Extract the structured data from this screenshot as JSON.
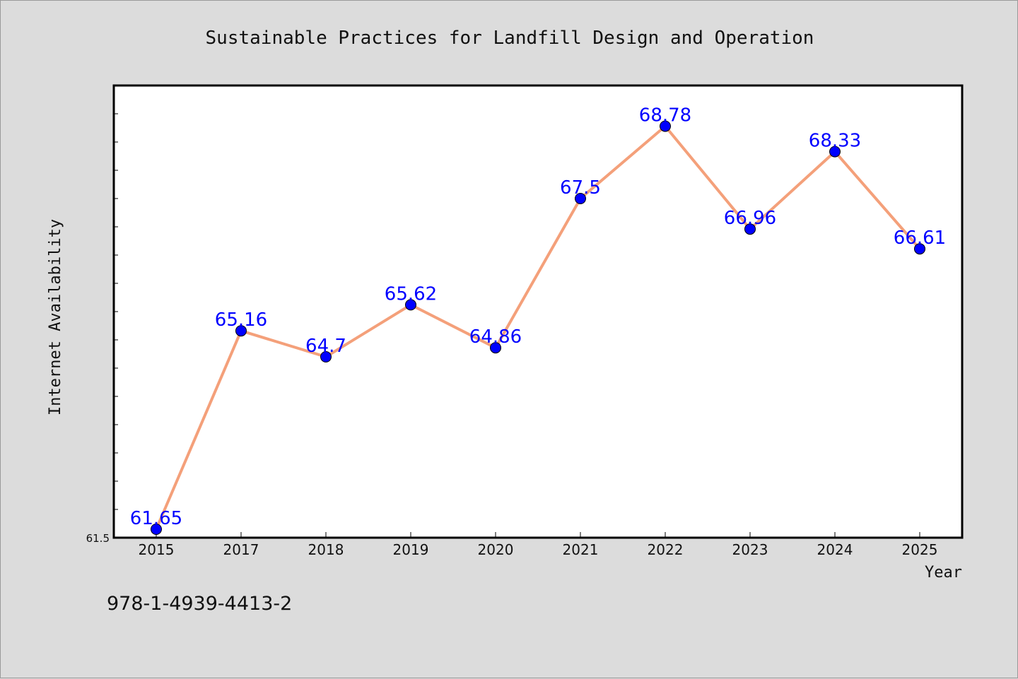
{
  "chart_data": {
    "type": "line",
    "title": "Sustainable Practices for Landfill Design and Operation",
    "xlabel": "Year",
    "ylabel": "Internet Availability",
    "categories": [
      "2015",
      "2017",
      "2018",
      "2019",
      "2020",
      "2021",
      "2022",
      "2023",
      "2024",
      "2025"
    ],
    "series": [
      {
        "values": [
          61.65,
          65.16,
          64.7,
          65.62,
          64.86,
          67.5,
          68.78,
          66.96,
          68.33,
          66.61
        ],
        "data_labels": [
          "61.65",
          "65.16",
          "64.7",
          "65.62",
          "64.86",
          "67.5",
          "68.78",
          "66.96",
          "68.33",
          "66.61"
        ]
      }
    ],
    "ylim": [
      61.5,
      69.5
    ],
    "y_tick_label": "61.5",
    "grid": false,
    "legend": "none",
    "line_color": "#f4a07a",
    "marker_color": "#0000ff",
    "label_color": "#0000ff"
  },
  "footer": {
    "isbn": "978-1-4939-4413-2"
  }
}
